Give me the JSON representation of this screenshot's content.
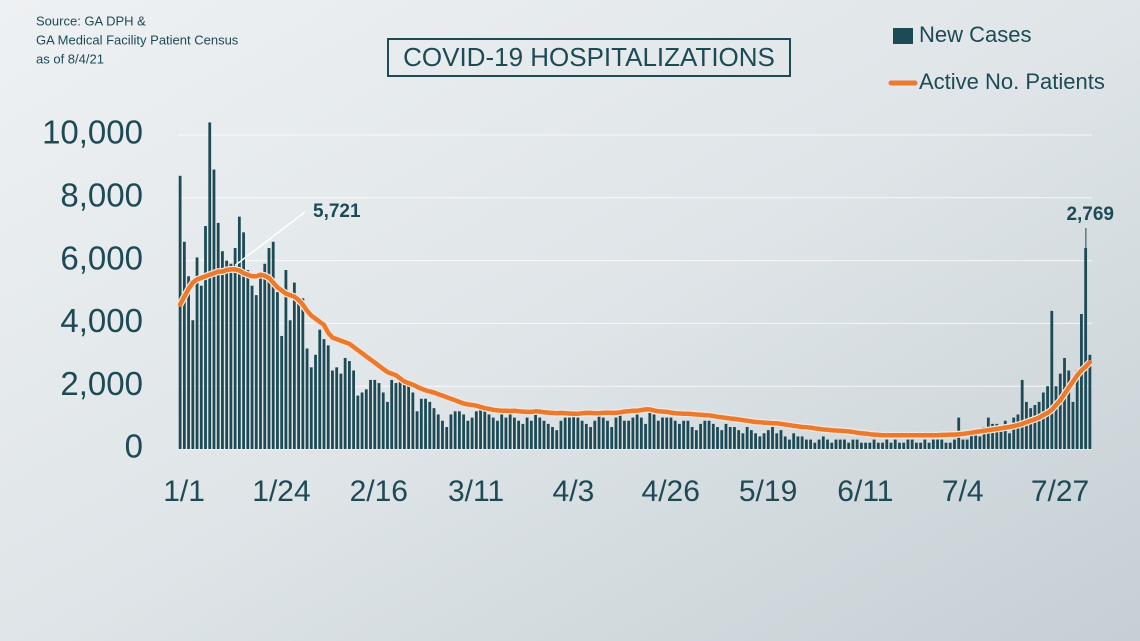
{
  "chart_data": {
    "type": "bar-line",
    "title": "COVID-19 HOSPITALIZATIONS",
    "source": [
      "Source: GA DPH &",
      "GA Medical Facility Patient Census",
      "as of  8/4/21"
    ],
    "annotations": [
      "5,721",
      "2,769"
    ],
    "ylim": [
      0,
      10000
    ],
    "yticks": [
      0,
      {
        "value": 2000,
        "label": "2,000"
      },
      {
        "value": 4000,
        "label": "4,000"
      },
      {
        "value": 6000,
        "label": "6,000"
      },
      {
        "value": 8000,
        "label": "8,000"
      },
      {
        "value": 10000,
        "label": "10,000"
      }
    ],
    "grid": true,
    "categories": [
      "1/1",
      null,
      null,
      null,
      null,
      null,
      null,
      null,
      null,
      null,
      null,
      null,
      null,
      null,
      null,
      null,
      null,
      null,
      null,
      null,
      null,
      null,
      null,
      "1/24",
      null,
      null,
      null,
      null,
      null,
      null,
      null,
      null,
      null,
      null,
      null,
      null,
      null,
      null,
      null,
      null,
      null,
      null,
      null,
      null,
      null,
      null,
      "2/16",
      null,
      null,
      null,
      null,
      null,
      null,
      null,
      null,
      null,
      null,
      null,
      null,
      null,
      null,
      null,
      null,
      null,
      null,
      null,
      null,
      null,
      null,
      "3/11",
      null,
      null,
      null,
      null,
      null,
      null,
      null,
      null,
      null,
      null,
      null,
      null,
      null,
      null,
      null,
      null,
      null,
      null,
      null,
      null,
      null,
      null,
      "4/3",
      null,
      null,
      null,
      null,
      null,
      null,
      null,
      null,
      null,
      null,
      null,
      null,
      null,
      null,
      null,
      null,
      null,
      null,
      null,
      null,
      null,
      null,
      "4/26",
      null,
      null,
      null,
      null,
      null,
      null,
      null,
      null,
      null,
      null,
      null,
      null,
      null,
      null,
      null,
      null,
      null,
      null,
      null,
      null,
      null,
      null,
      "5/19",
      null,
      null,
      null,
      null,
      null,
      null,
      null,
      null,
      null,
      null,
      null,
      null,
      null,
      null,
      null,
      null,
      null,
      null,
      null,
      null,
      null,
      null,
      "6/11",
      null,
      null,
      null,
      null,
      null,
      null,
      null,
      null,
      null,
      null,
      null,
      null,
      null,
      null,
      null,
      null,
      null,
      null,
      null,
      null,
      null,
      null,
      "7/4",
      null,
      null,
      null,
      null,
      null,
      null,
      null,
      null,
      null,
      null,
      null,
      null,
      null,
      null,
      null,
      null,
      null,
      null,
      null,
      null,
      null,
      null,
      "7/27",
      null,
      null,
      null,
      null,
      null,
      null,
      null,
      null
    ],
    "series": [
      {
        "name": "New Cases",
        "kind": "bar",
        "color": "#1d4a55",
        "values": [
          8700,
          6600,
          5500,
          4100,
          6100,
          5200,
          7100,
          10400,
          8900,
          7200,
          6300,
          6000,
          5900,
          6400,
          7400,
          6900,
          5700,
          5200,
          4900,
          5500,
          5900,
          6400,
          6600,
          5000,
          3600,
          5700,
          4100,
          5300,
          4700,
          4800,
          3200,
          2600,
          3000,
          3800,
          3500,
          3300,
          2500,
          2600,
          2400,
          2900,
          2800,
          2500,
          1700,
          1800,
          1900,
          2200,
          2200,
          2100,
          1800,
          1500,
          2200,
          2100,
          2200,
          2100,
          2000,
          1800,
          1200,
          1600,
          1600,
          1500,
          1300,
          1100,
          900,
          700,
          1100,
          1200,
          1200,
          1100,
          900,
          1000,
          1200,
          1300,
          1200,
          1100,
          1000,
          900,
          1100,
          1000,
          1200,
          1000,
          900,
          800,
          1000,
          900,
          1100,
          1000,
          900,
          800,
          700,
          600,
          900,
          1000,
          1000,
          1100,
          1000,
          900,
          800,
          700,
          900,
          1100,
          1000,
          900,
          700,
          1000,
          1100,
          900,
          900,
          1000,
          1100,
          1000,
          800,
          1200,
          1100,
          900,
          1000,
          1000,
          1000,
          900,
          800,
          900,
          900,
          700,
          600,
          800,
          900,
          900,
          800,
          700,
          600,
          800,
          700,
          700,
          600,
          500,
          700,
          600,
          500,
          400,
          500,
          600,
          700,
          500,
          600,
          400,
          300,
          500,
          400,
          400,
          300,
          300,
          200,
          300,
          400,
          300,
          200,
          300,
          300,
          300,
          200,
          300,
          300,
          200,
          200,
          200,
          300,
          200,
          200,
          300,
          200,
          300,
          200,
          200,
          300,
          300,
          200,
          200,
          300,
          200,
          300,
          300,
          300,
          200,
          200,
          300,
          1000,
          300,
          300,
          600,
          500,
          400,
          700,
          1000,
          800,
          800,
          600,
          900,
          500,
          1000,
          1100,
          2200,
          1500,
          1300,
          1400,
          1500,
          1800,
          2000,
          4400,
          2000,
          2400,
          2900,
          2500,
          1500,
          2500,
          4300,
          6400,
          3000
        ]
      },
      {
        "name": "Active No. Patients",
        "kind": "line",
        "color": "#ec7a2e",
        "values": [
          4600,
          4850,
          5100,
          5300,
          5400,
          5450,
          5500,
          5550,
          5600,
          5650,
          5650,
          5700,
          5720,
          5721,
          5680,
          5600,
          5550,
          5500,
          5500,
          5550,
          5520,
          5450,
          5300,
          5150,
          5050,
          4950,
          4900,
          4850,
          4750,
          4600,
          4400,
          4250,
          4150,
          4050,
          3950,
          3700,
          3550,
          3500,
          3450,
          3400,
          3350,
          3250,
          3150,
          3050,
          2950,
          2850,
          2750,
          2650,
          2550,
          2450,
          2400,
          2350,
          2250,
          2150,
          2100,
          2050,
          1980,
          1920,
          1870,
          1830,
          1800,
          1750,
          1700,
          1650,
          1600,
          1550,
          1500,
          1450,
          1420,
          1400,
          1380,
          1340,
          1300,
          1280,
          1250,
          1230,
          1220,
          1220,
          1210,
          1220,
          1200,
          1190,
          1180,
          1180,
          1200,
          1190,
          1170,
          1160,
          1150,
          1140,
          1150,
          1140,
          1130,
          1120,
          1120,
          1140,
          1150,
          1150,
          1140,
          1140,
          1150,
          1160,
          1150,
          1150,
          1170,
          1190,
          1200,
          1220,
          1220,
          1240,
          1260,
          1260,
          1230,
          1200,
          1190,
          1180,
          1160,
          1140,
          1130,
          1120,
          1120,
          1110,
          1100,
          1090,
          1080,
          1070,
          1050,
          1030,
          1010,
          990,
          970,
          960,
          940,
          920,
          900,
          880,
          860,
          850,
          840,
          830,
          820,
          820,
          800,
          780,
          760,
          740,
          720,
          700,
          690,
          680,
          660,
          640,
          620,
          610,
          600,
          590,
          580,
          570,
          560,
          540,
          520,
          500,
          490,
          470,
          460,
          450,
          440,
          440,
          440,
          440,
          440,
          440,
          440,
          440,
          440,
          440,
          440,
          440,
          440,
          440,
          450,
          450,
          460,
          460,
          470,
          480,
          500,
          520,
          540,
          560,
          580,
          600,
          620,
          640,
          660,
          680,
          700,
          730,
          760,
          800,
          850,
          900,
          950,
          1000,
          1080,
          1150,
          1250,
          1400,
          1550,
          1750,
          1950,
          2150,
          2350,
          2500,
          2620,
          2769
        ]
      }
    ]
  }
}
